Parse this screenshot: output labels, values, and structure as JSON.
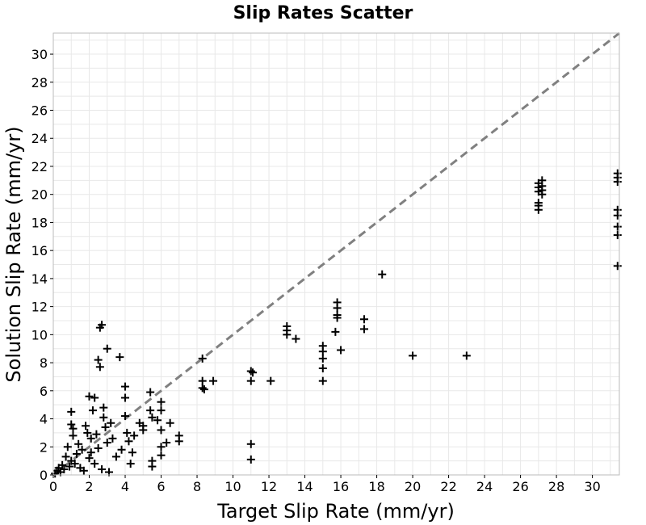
{
  "chart_data": {
    "type": "scatter",
    "title": "Slip Rates Scatter",
    "xlabel": "Target Slip Rate (mm/yr)",
    "ylabel": "Solution Slip Rate (mm/yr)",
    "xlim": [
      0,
      31.5
    ],
    "ylim": [
      0,
      31.5
    ],
    "x_ticks": [
      0,
      2,
      4,
      6,
      8,
      10,
      12,
      14,
      16,
      18,
      20,
      22,
      24,
      26,
      28,
      30
    ],
    "y_ticks": [
      0,
      2,
      4,
      6,
      8,
      10,
      12,
      14,
      16,
      18,
      20,
      22,
      24,
      26,
      28,
      30
    ],
    "grid": true,
    "reference_line": "y = x",
    "series": [
      {
        "marker": "+",
        "color": "#000000",
        "points": [
          [
            0.1,
            0.1
          ],
          [
            0.2,
            0.3
          ],
          [
            0.3,
            0.5
          ],
          [
            0.4,
            0.2
          ],
          [
            0.5,
            0.7
          ],
          [
            0.6,
            0.4
          ],
          [
            0.7,
            1.3
          ],
          [
            0.8,
            2.0
          ],
          [
            0.9,
            0.6
          ],
          [
            1.0,
            1.0
          ],
          [
            1.0,
            4.5
          ],
          [
            1.0,
            3.6
          ],
          [
            1.1,
            3.3
          ],
          [
            1.1,
            2.8
          ],
          [
            1.2,
            0.8
          ],
          [
            1.3,
            1.5
          ],
          [
            1.4,
            2.2
          ],
          [
            1.5,
            0.5
          ],
          [
            1.6,
            1.8
          ],
          [
            1.7,
            0.3
          ],
          [
            1.8,
            3.5
          ],
          [
            1.9,
            3.0
          ],
          [
            2.0,
            5.6
          ],
          [
            2.0,
            1.2
          ],
          [
            2.1,
            2.6
          ],
          [
            2.1,
            1.6
          ],
          [
            2.2,
            4.6
          ],
          [
            2.3,
            5.5
          ],
          [
            2.3,
            0.8
          ],
          [
            2.4,
            2.9
          ],
          [
            2.5,
            8.2
          ],
          [
            2.5,
            1.9
          ],
          [
            2.6,
            10.5
          ],
          [
            2.7,
            10.7
          ],
          [
            2.6,
            7.7
          ],
          [
            2.7,
            0.4
          ],
          [
            2.8,
            4.8
          ],
          [
            2.8,
            4.1
          ],
          [
            2.9,
            3.4
          ],
          [
            3.0,
            9.0
          ],
          [
            3.0,
            2.3
          ],
          [
            3.1,
            0.2
          ],
          [
            3.2,
            3.7
          ],
          [
            3.3,
            2.6
          ],
          [
            3.5,
            1.3
          ],
          [
            3.7,
            8.4
          ],
          [
            3.8,
            1.8
          ],
          [
            4.0,
            6.3
          ],
          [
            4.0,
            5.5
          ],
          [
            4.0,
            4.2
          ],
          [
            4.1,
            3.0
          ],
          [
            4.2,
            2.4
          ],
          [
            4.3,
            0.8
          ],
          [
            4.4,
            1.6
          ],
          [
            4.5,
            2.8
          ],
          [
            4.8,
            3.7
          ],
          [
            5.0,
            3.5
          ],
          [
            5.0,
            3.2
          ],
          [
            5.4,
            5.9
          ],
          [
            5.4,
            4.6
          ],
          [
            5.5,
            4.1
          ],
          [
            5.5,
            1.0
          ],
          [
            5.5,
            0.6
          ],
          [
            5.8,
            3.9
          ],
          [
            6.0,
            5.2
          ],
          [
            6.0,
            4.6
          ],
          [
            6.0,
            3.2
          ],
          [
            6.0,
            2.0
          ],
          [
            6.0,
            1.4
          ],
          [
            6.3,
            2.3
          ],
          [
            6.5,
            3.7
          ],
          [
            7.0,
            2.8
          ],
          [
            7.0,
            2.4
          ],
          [
            8.3,
            8.3
          ],
          [
            8.3,
            6.7
          ],
          [
            8.3,
            6.2
          ],
          [
            8.4,
            6.1
          ],
          [
            8.9,
            6.7
          ],
          [
            11.0,
            7.4
          ],
          [
            11.1,
            7.3
          ],
          [
            11.0,
            6.7
          ],
          [
            11.0,
            2.2
          ],
          [
            11.0,
            1.1
          ],
          [
            12.1,
            6.7
          ],
          [
            13.0,
            10.6
          ],
          [
            13.0,
            10.3
          ],
          [
            13.0,
            10.0
          ],
          [
            13.5,
            9.7
          ],
          [
            15.0,
            9.2
          ],
          [
            15.0,
            8.8
          ],
          [
            15.0,
            8.3
          ],
          [
            15.0,
            7.6
          ],
          [
            15.0,
            6.7
          ],
          [
            15.8,
            12.3
          ],
          [
            15.8,
            11.9
          ],
          [
            15.8,
            11.4
          ],
          [
            15.8,
            11.2
          ],
          [
            15.7,
            10.2
          ],
          [
            16.0,
            8.9
          ],
          [
            17.3,
            11.1
          ],
          [
            17.3,
            10.4
          ],
          [
            18.3,
            14.3
          ],
          [
            20.0,
            8.5
          ],
          [
            23.0,
            8.5
          ],
          [
            27.0,
            20.8
          ],
          [
            27.0,
            20.5
          ],
          [
            27.0,
            20.2
          ],
          [
            27.0,
            19.4
          ],
          [
            27.0,
            19.2
          ],
          [
            27.0,
            18.9
          ],
          [
            27.2,
            21.0
          ],
          [
            27.2,
            20.6
          ],
          [
            27.2,
            20.3
          ],
          [
            27.2,
            20.0
          ],
          [
            31.4,
            21.5
          ],
          [
            31.4,
            21.2
          ],
          [
            31.4,
            20.9
          ],
          [
            31.4,
            18.9
          ],
          [
            31.4,
            18.5
          ],
          [
            31.4,
            17.7
          ],
          [
            31.4,
            17.1
          ],
          [
            31.4,
            14.9
          ]
        ]
      }
    ]
  }
}
